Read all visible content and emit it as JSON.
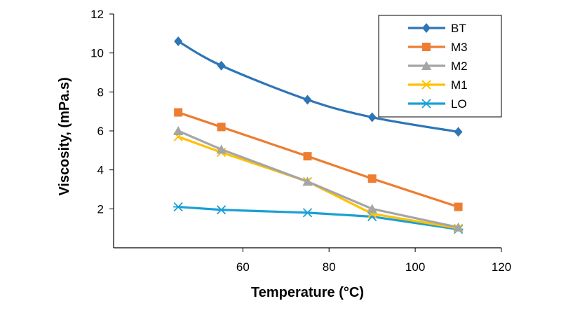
{
  "chart_data": {
    "type": "line",
    "title": "",
    "xlabel": "Temperature (°C)",
    "ylabel": "Viscosity, (mPa.s)",
    "xlim": [
      30,
      120
    ],
    "ylim": [
      0,
      12
    ],
    "xticks": [
      60,
      80,
      100,
      120
    ],
    "yticks": [
      2,
      4,
      6,
      8,
      10,
      12
    ],
    "grid": false,
    "legend_position": "top-right",
    "series": [
      {
        "name": "BT",
        "color": "#2e75b6",
        "marker": "diamond",
        "smooth": true,
        "x": [
          45,
          55,
          75,
          90,
          110
        ],
        "y": [
          10.6,
          9.35,
          7.6,
          6.7,
          5.95
        ]
      },
      {
        "name": "M3",
        "color": "#ed7d31",
        "marker": "square",
        "smooth": false,
        "x": [
          45,
          55,
          75,
          90,
          110
        ],
        "y": [
          6.95,
          6.2,
          4.7,
          3.55,
          2.1
        ]
      },
      {
        "name": "M2",
        "color": "#a5a5a5",
        "marker": "triangle",
        "smooth": false,
        "x": [
          45,
          55,
          75,
          90,
          110
        ],
        "y": [
          6.0,
          5.05,
          3.4,
          2.0,
          1.05
        ]
      },
      {
        "name": "M1",
        "color": "#ffc000",
        "marker": "x",
        "smooth": false,
        "x": [
          45,
          55,
          75,
          90,
          110
        ],
        "y": [
          5.7,
          4.9,
          3.4,
          1.75,
          1.0
        ]
      },
      {
        "name": "LO",
        "color": "#1a9fd6",
        "marker": "asterisk",
        "smooth": false,
        "x": [
          45,
          55,
          75,
          90,
          110
        ],
        "y": [
          2.1,
          1.95,
          1.8,
          1.6,
          0.95
        ]
      }
    ]
  }
}
